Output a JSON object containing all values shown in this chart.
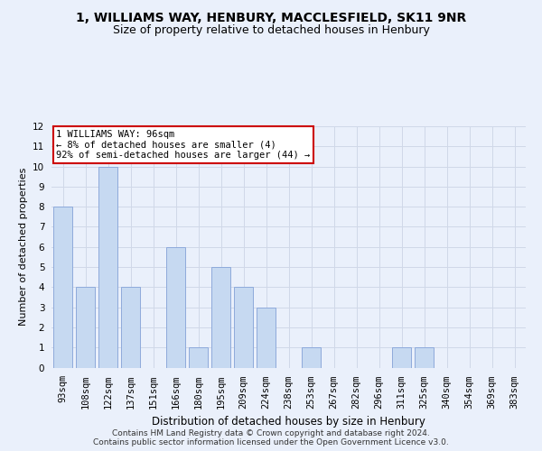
{
  "title_line1": "1, WILLIAMS WAY, HENBURY, MACCLESFIELD, SK11 9NR",
  "title_line2": "Size of property relative to detached houses in Henbury",
  "xlabel": "Distribution of detached houses by size in Henbury",
  "ylabel": "Number of detached properties",
  "categories": [
    "93sqm",
    "108sqm",
    "122sqm",
    "137sqm",
    "151sqm",
    "166sqm",
    "180sqm",
    "195sqm",
    "209sqm",
    "224sqm",
    "238sqm",
    "253sqm",
    "267sqm",
    "282sqm",
    "296sqm",
    "311sqm",
    "325sqm",
    "340sqm",
    "354sqm",
    "369sqm",
    "383sqm"
  ],
  "values": [
    8,
    4,
    10,
    4,
    0,
    6,
    1,
    5,
    4,
    3,
    0,
    1,
    0,
    0,
    0,
    1,
    1,
    0,
    0,
    0,
    0
  ],
  "bar_color": "#c6d9f1",
  "bar_edge_color": "#8eaadb",
  "annotation_box_text": "1 WILLIAMS WAY: 96sqm\n← 8% of detached houses are smaller (4)\n92% of semi-detached houses are larger (44) →",
  "annotation_box_color": "#ffffff",
  "annotation_box_edge_color": "#cc0000",
  "ylim": [
    0,
    12
  ],
  "yticks": [
    0,
    1,
    2,
    3,
    4,
    5,
    6,
    7,
    8,
    9,
    10,
    11,
    12
  ],
  "grid_color": "#d0d8e8",
  "background_color": "#eaf0fb",
  "plot_bg_color": "#eaf0fb",
  "footer_text": "Contains HM Land Registry data © Crown copyright and database right 2024.\nContains public sector information licensed under the Open Government Licence v3.0.",
  "title_fontsize": 10,
  "subtitle_fontsize": 9,
  "axis_label_fontsize": 8,
  "tick_fontsize": 7.5,
  "annotation_fontsize": 7.5,
  "footer_fontsize": 6.5
}
